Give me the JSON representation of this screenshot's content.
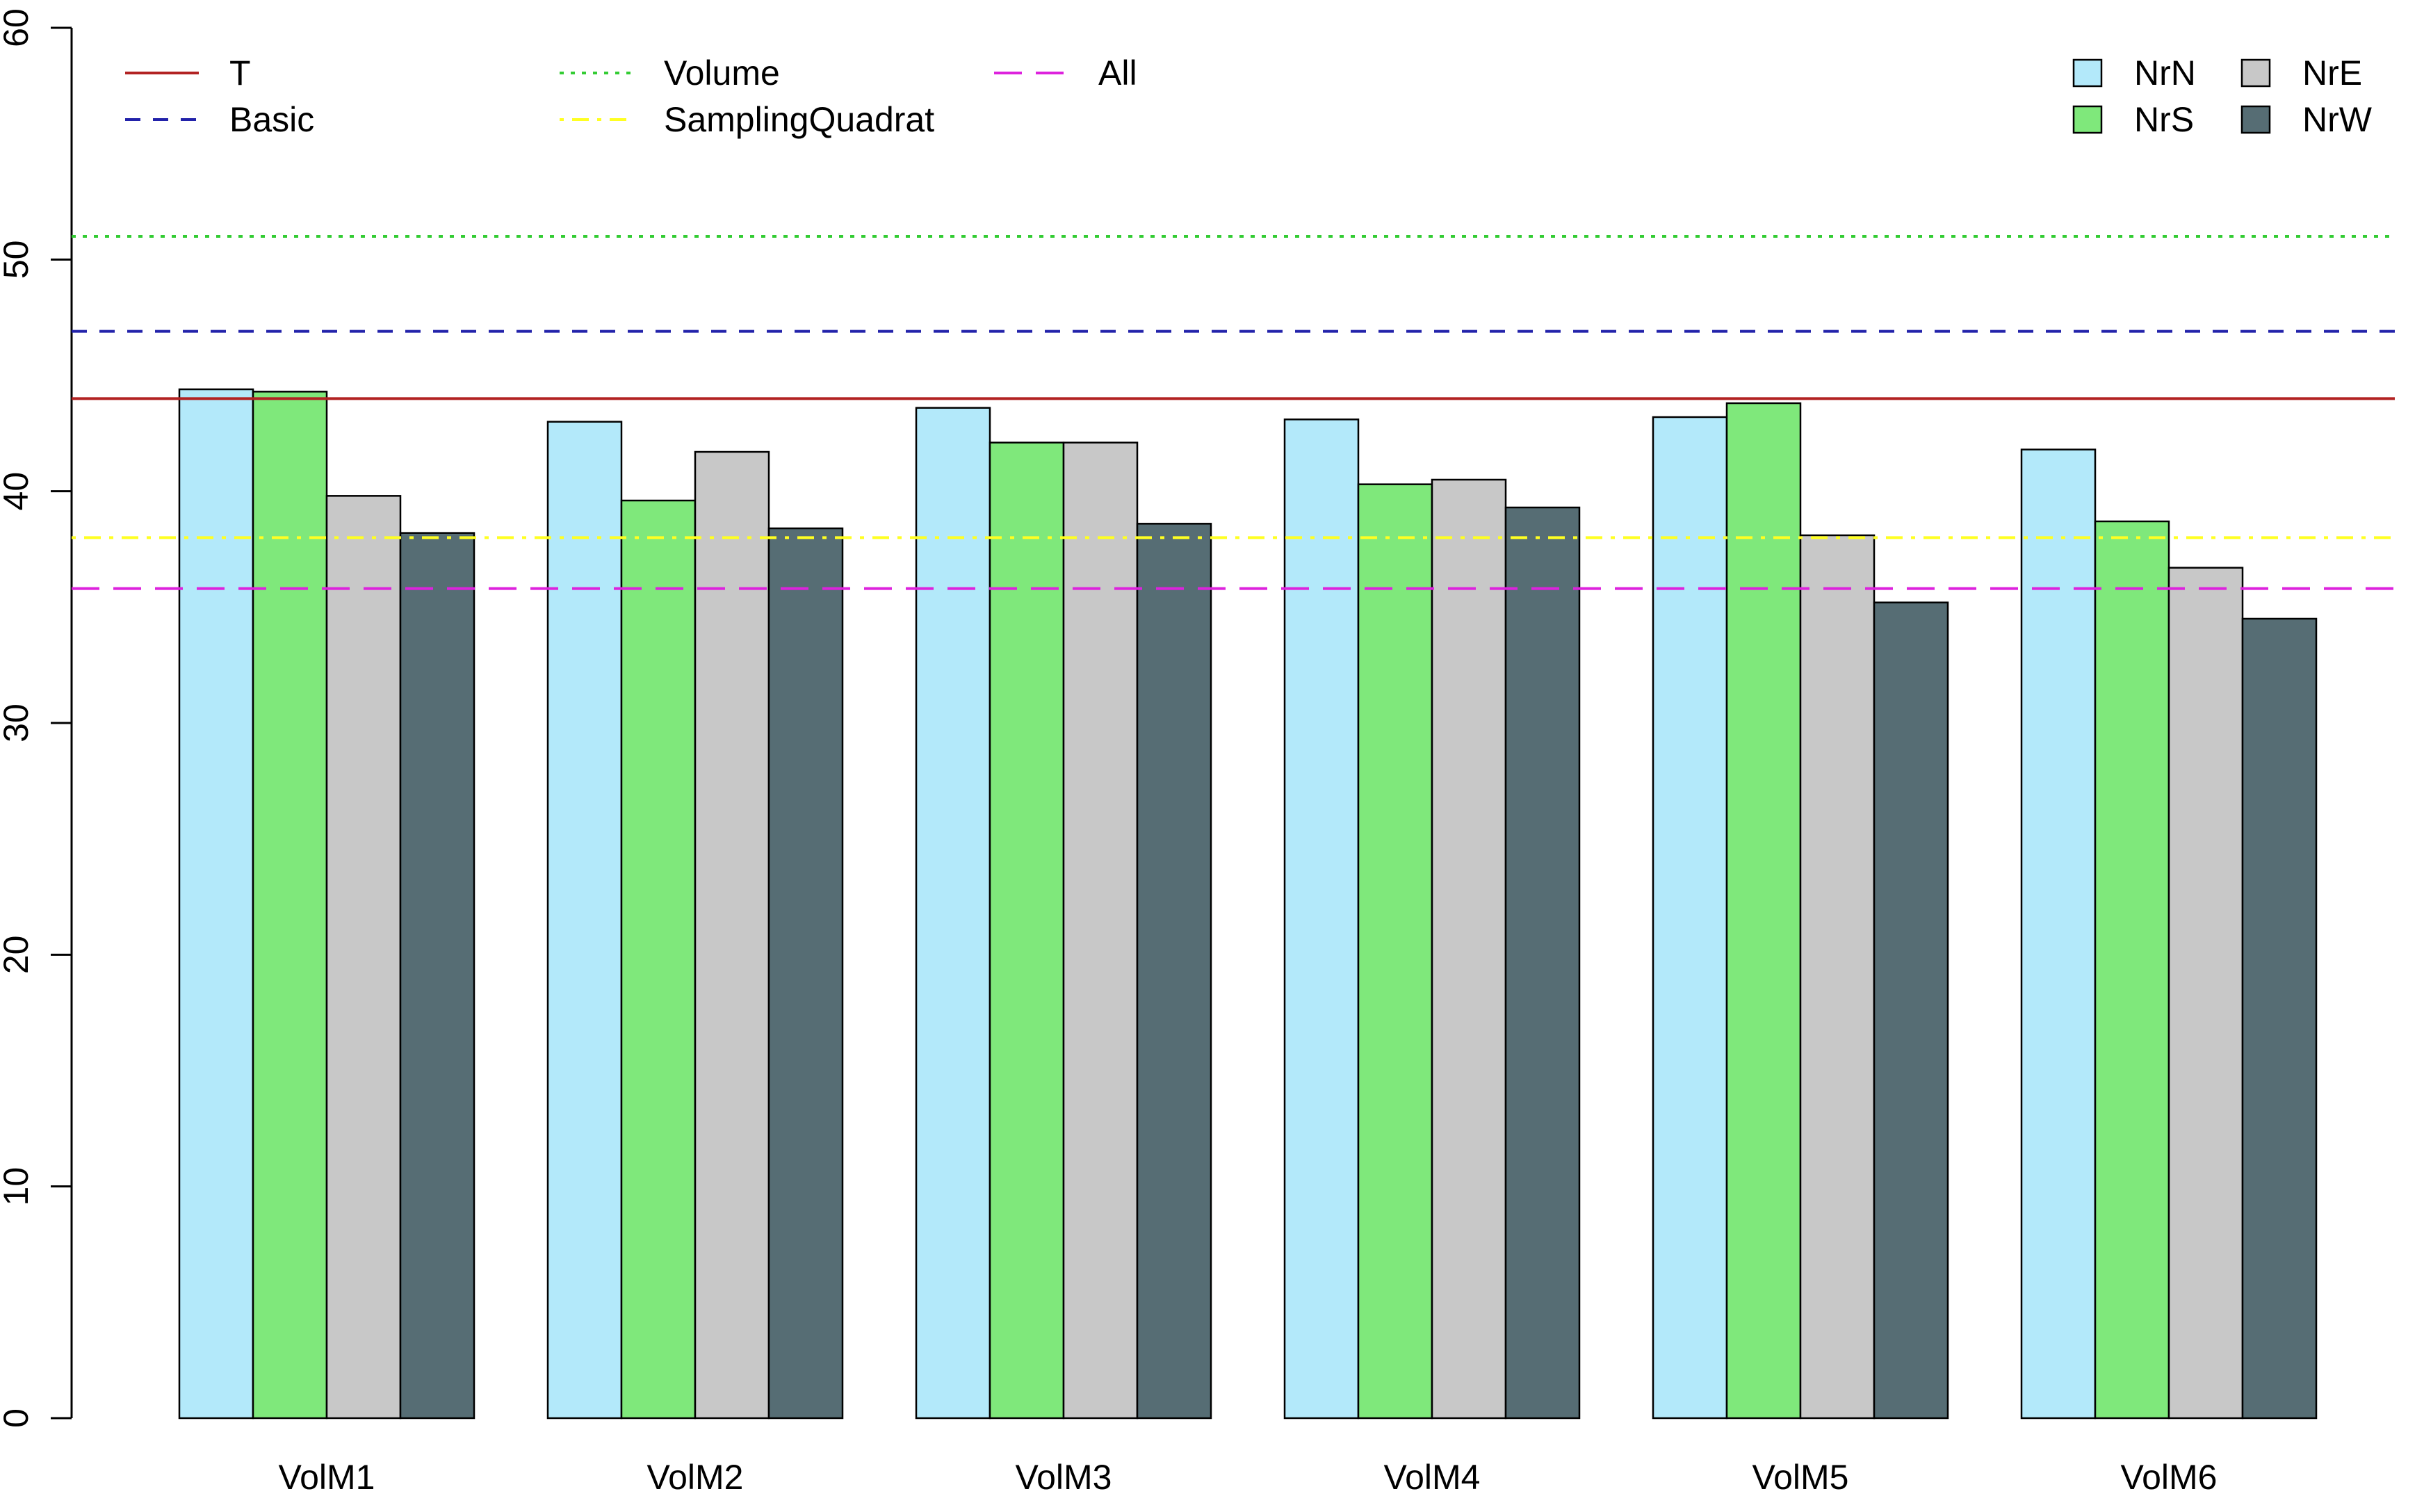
{
  "chart_data": {
    "type": "bar",
    "title": "",
    "xlabel": "",
    "ylabel": "",
    "ylim": [
      0,
      60
    ],
    "yticks": [
      0,
      10,
      20,
      30,
      40,
      50,
      60
    ],
    "grid": false,
    "categories": [
      "VolM1",
      "VolM2",
      "VolM3",
      "VolM4",
      "VolM5",
      "VolM6"
    ],
    "series": [
      {
        "name": "NrN",
        "color": "#b3e9fa",
        "values": [
          44.4,
          43.0,
          43.6,
          43.1,
          43.2,
          41.8
        ]
      },
      {
        "name": "NrS",
        "color": "#7fe87b",
        "values": [
          44.3,
          39.6,
          42.1,
          40.3,
          43.8,
          38.7
        ]
      },
      {
        "name": "NrE",
        "color": "#c8c8c8",
        "values": [
          39.8,
          41.7,
          42.1,
          40.5,
          38.1,
          36.7
        ]
      },
      {
        "name": "NrW",
        "color": "#566d74",
        "values": [
          38.2,
          38.4,
          38.6,
          39.3,
          35.2,
          34.5
        ]
      }
    ],
    "bar_legend_position": "top-right",
    "reference_lines": [
      {
        "name": "T",
        "value": 44.0,
        "color": "#b22222",
        "dash": "solid"
      },
      {
        "name": "Basic",
        "value": 46.9,
        "color": "#2222aa",
        "dash": "dashed"
      },
      {
        "name": "Volume",
        "value": 51.0,
        "color": "#33cc33",
        "dash": "dotted"
      },
      {
        "name": "SamplingQuadrat",
        "value": 38.0,
        "color": "#ffff22",
        "dash": "dotdash"
      },
      {
        "name": "All",
        "value": 35.8,
        "color": "#dd22dd",
        "dash": "longdash"
      }
    ],
    "line_legend_position": "top-left"
  }
}
